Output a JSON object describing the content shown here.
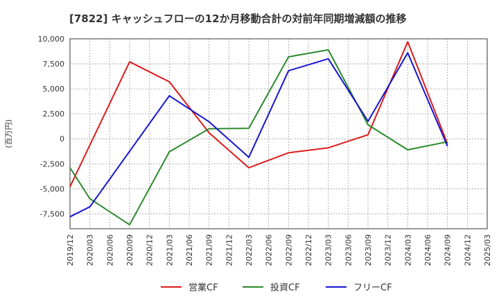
{
  "chart_data": {
    "type": "line",
    "title": "[7822]  キャッシュフローの12か月移動合計の対前年同期増減額の推移",
    "ylabel": "(百万円)",
    "xlabel": "",
    "ylim": [
      -9000,
      10000
    ],
    "yticks": [
      10000,
      7500,
      5000,
      2500,
      0,
      -2500,
      -5000,
      -7500
    ],
    "ytick_labels": [
      "10,000",
      "7,500",
      "5,000",
      "2,500",
      "0",
      "-2,500",
      "-5,000",
      "-7,500"
    ],
    "categories": [
      "2019/12",
      "2020/03",
      "2020/06",
      "2020/09",
      "2020/12",
      "2021/03",
      "2021/06",
      "2021/09",
      "2021/12",
      "2022/03",
      "2022/06",
      "2022/09",
      "2022/12",
      "2023/03",
      "2023/06",
      "2023/09",
      "2023/12",
      "2024/03",
      "2024/06",
      "2024/09",
      "2024/12",
      "2025/03"
    ],
    "grid": true,
    "legend_position": "bottom",
    "series": [
      {
        "name": "営業CF",
        "color": "#dd1a1a",
        "values": [
          -4800,
          null,
          null,
          7700,
          null,
          5700,
          null,
          600,
          null,
          -2900,
          null,
          -1400,
          null,
          -900,
          null,
          400,
          null,
          9700,
          null,
          -500,
          null,
          null
        ]
      },
      {
        "name": "投資CF",
        "color": "#2a8a2a",
        "values": [
          -2900,
          -6000,
          null,
          -8600,
          null,
          -1300,
          null,
          1000,
          null,
          1050,
          null,
          8200,
          null,
          8900,
          null,
          1400,
          null,
          -1100,
          null,
          -300,
          null,
          null
        ]
      },
      {
        "name": "フリーCF",
        "color": "#1414d0",
        "values": [
          -7800,
          -6800,
          null,
          null,
          null,
          4300,
          null,
          1700,
          null,
          -1850,
          null,
          6800,
          null,
          8000,
          null,
          1750,
          null,
          8600,
          null,
          -750,
          null,
          null
        ]
      }
    ]
  }
}
